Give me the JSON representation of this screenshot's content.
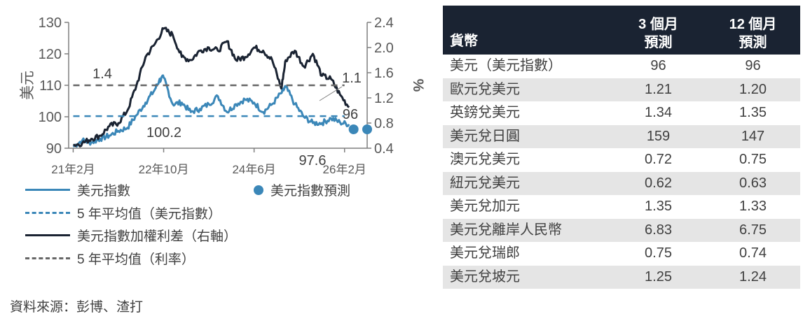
{
  "chart_data": {
    "type": "line",
    "x_ticks": [
      "21年2月",
      "22年10月",
      "24年6月",
      "26年2月"
    ],
    "x_range": [
      "2021-01",
      "2026-07"
    ],
    "y_left": {
      "label": "美元",
      "ticks": [
        90,
        100,
        110,
        120,
        130
      ],
      "range": [
        90,
        130
      ]
    },
    "y_right": {
      "label": "%",
      "ticks": [
        "0.4",
        "0.8",
        "1.2",
        "1.6",
        "2.0",
        "2.4"
      ],
      "range": [
        0.4,
        2.4
      ]
    },
    "series": [
      {
        "name": "美元指數",
        "axis": "left",
        "color": "#3b87b8",
        "x": [
          "2021-02",
          "2021-04",
          "2021-06",
          "2021-08",
          "2021-10",
          "2021-12",
          "2022-02",
          "2022-04",
          "2022-06",
          "2022-08",
          "2022-09",
          "2022-10",
          "2022-12",
          "2023-02",
          "2023-04",
          "2023-06",
          "2023-08",
          "2023-10",
          "2023-12",
          "2024-02",
          "2024-04",
          "2024-06",
          "2024-08",
          "2024-10",
          "2024-12",
          "2025-01",
          "2025-03",
          "2025-05",
          "2025-07",
          "2025-09",
          "2025-11",
          "2026-01",
          "2026-03"
        ],
        "values": [
          90.5,
          92.5,
          91.8,
          93.0,
          94.0,
          95.5,
          96.5,
          100.5,
          104.5,
          108.5,
          111.5,
          112.5,
          104.0,
          104.5,
          101.5,
          102.5,
          104.0,
          106.5,
          101.5,
          104.0,
          105.5,
          104.5,
          101.5,
          104.0,
          107.5,
          109.5,
          104.0,
          100.0,
          98.0,
          98.0,
          99.5,
          98.2,
          97.6
        ]
      },
      {
        "name": "美元指數加權利差（右軸）",
        "axis": "right",
        "color": "#1a2332",
        "x": [
          "2021-02",
          "2021-04",
          "2021-06",
          "2021-08",
          "2021-10",
          "2021-12",
          "2022-02",
          "2022-04",
          "2022-06",
          "2022-08",
          "2022-10",
          "2022-12",
          "2023-02",
          "2023-04",
          "2023-06",
          "2023-08",
          "2023-10",
          "2023-12",
          "2024-02",
          "2024-04",
          "2024-06",
          "2024-08",
          "2024-10",
          "2024-12",
          "2025-01",
          "2025-03",
          "2025-05",
          "2025-07",
          "2025-09",
          "2025-11",
          "2026-01",
          "2026-03"
        ],
        "values": [
          0.45,
          0.48,
          0.55,
          0.6,
          0.75,
          0.8,
          1.0,
          1.4,
          1.85,
          2.05,
          2.3,
          2.2,
          1.85,
          1.8,
          1.95,
          2.0,
          1.95,
          2.1,
          1.8,
          1.85,
          2.0,
          1.95,
          1.8,
          1.35,
          1.8,
          1.95,
          1.7,
          1.9,
          1.55,
          1.5,
          1.25,
          1.05
        ]
      },
      {
        "name": "5年平均值（美元指數）",
        "axis": "left",
        "color": "#3b87b8",
        "dashed": true,
        "x": [
          "2021-02",
          "2026-02"
        ],
        "values": [
          100.2,
          100.2
        ]
      },
      {
        "name": "5年平均值（利率）",
        "axis": "right",
        "color": "#666666",
        "dashed": true,
        "x": [
          "2021-02",
          "2026-02"
        ],
        "values": [
          1.4,
          1.4
        ]
      },
      {
        "name": "美元指數預測",
        "axis": "left",
        "color": "#3b87b8",
        "marker": "dot",
        "x": [
          "2026-04",
          "2026-07"
        ],
        "values": [
          96,
          96
        ]
      }
    ],
    "annotations": [
      "1.4",
      "100.2",
      "1.1",
      "96",
      "97.6"
    ]
  },
  "legend": [
    "美元指數",
    "美元指數預測",
    "5 年平均值（美元指數）",
    "美元指數加權利差（右軸）",
    "5 年平均值（利率）"
  ],
  "source": "資料來源：彭博、渣打",
  "table": {
    "headers": [
      "貨幣",
      "3 個月\n預測",
      "12 個月\n預測"
    ],
    "rows": [
      [
        "美元（美元指數）",
        "96",
        "96"
      ],
      [
        "歐元兌美元",
        "1.21",
        "1.20"
      ],
      [
        "英鎊兌美元",
        "1.34",
        "1.35"
      ],
      [
        "美元兌日圓",
        "159",
        "147"
      ],
      [
        "澳元兌美元",
        "0.72",
        "0.75"
      ],
      [
        "紐元兌美元",
        "0.62",
        "0.63"
      ],
      [
        "美元兌加元",
        "1.35",
        "1.33"
      ],
      [
        "美元兌離岸人民幣",
        "6.83",
        "6.75"
      ],
      [
        "美元兌瑞郎",
        "0.75",
        "0.74"
      ],
      [
        "美元兌坡元",
        "1.25",
        "1.24"
      ]
    ],
    "header_bg": "#1a2332",
    "alt_row_bg": "#e5e5e5"
  }
}
